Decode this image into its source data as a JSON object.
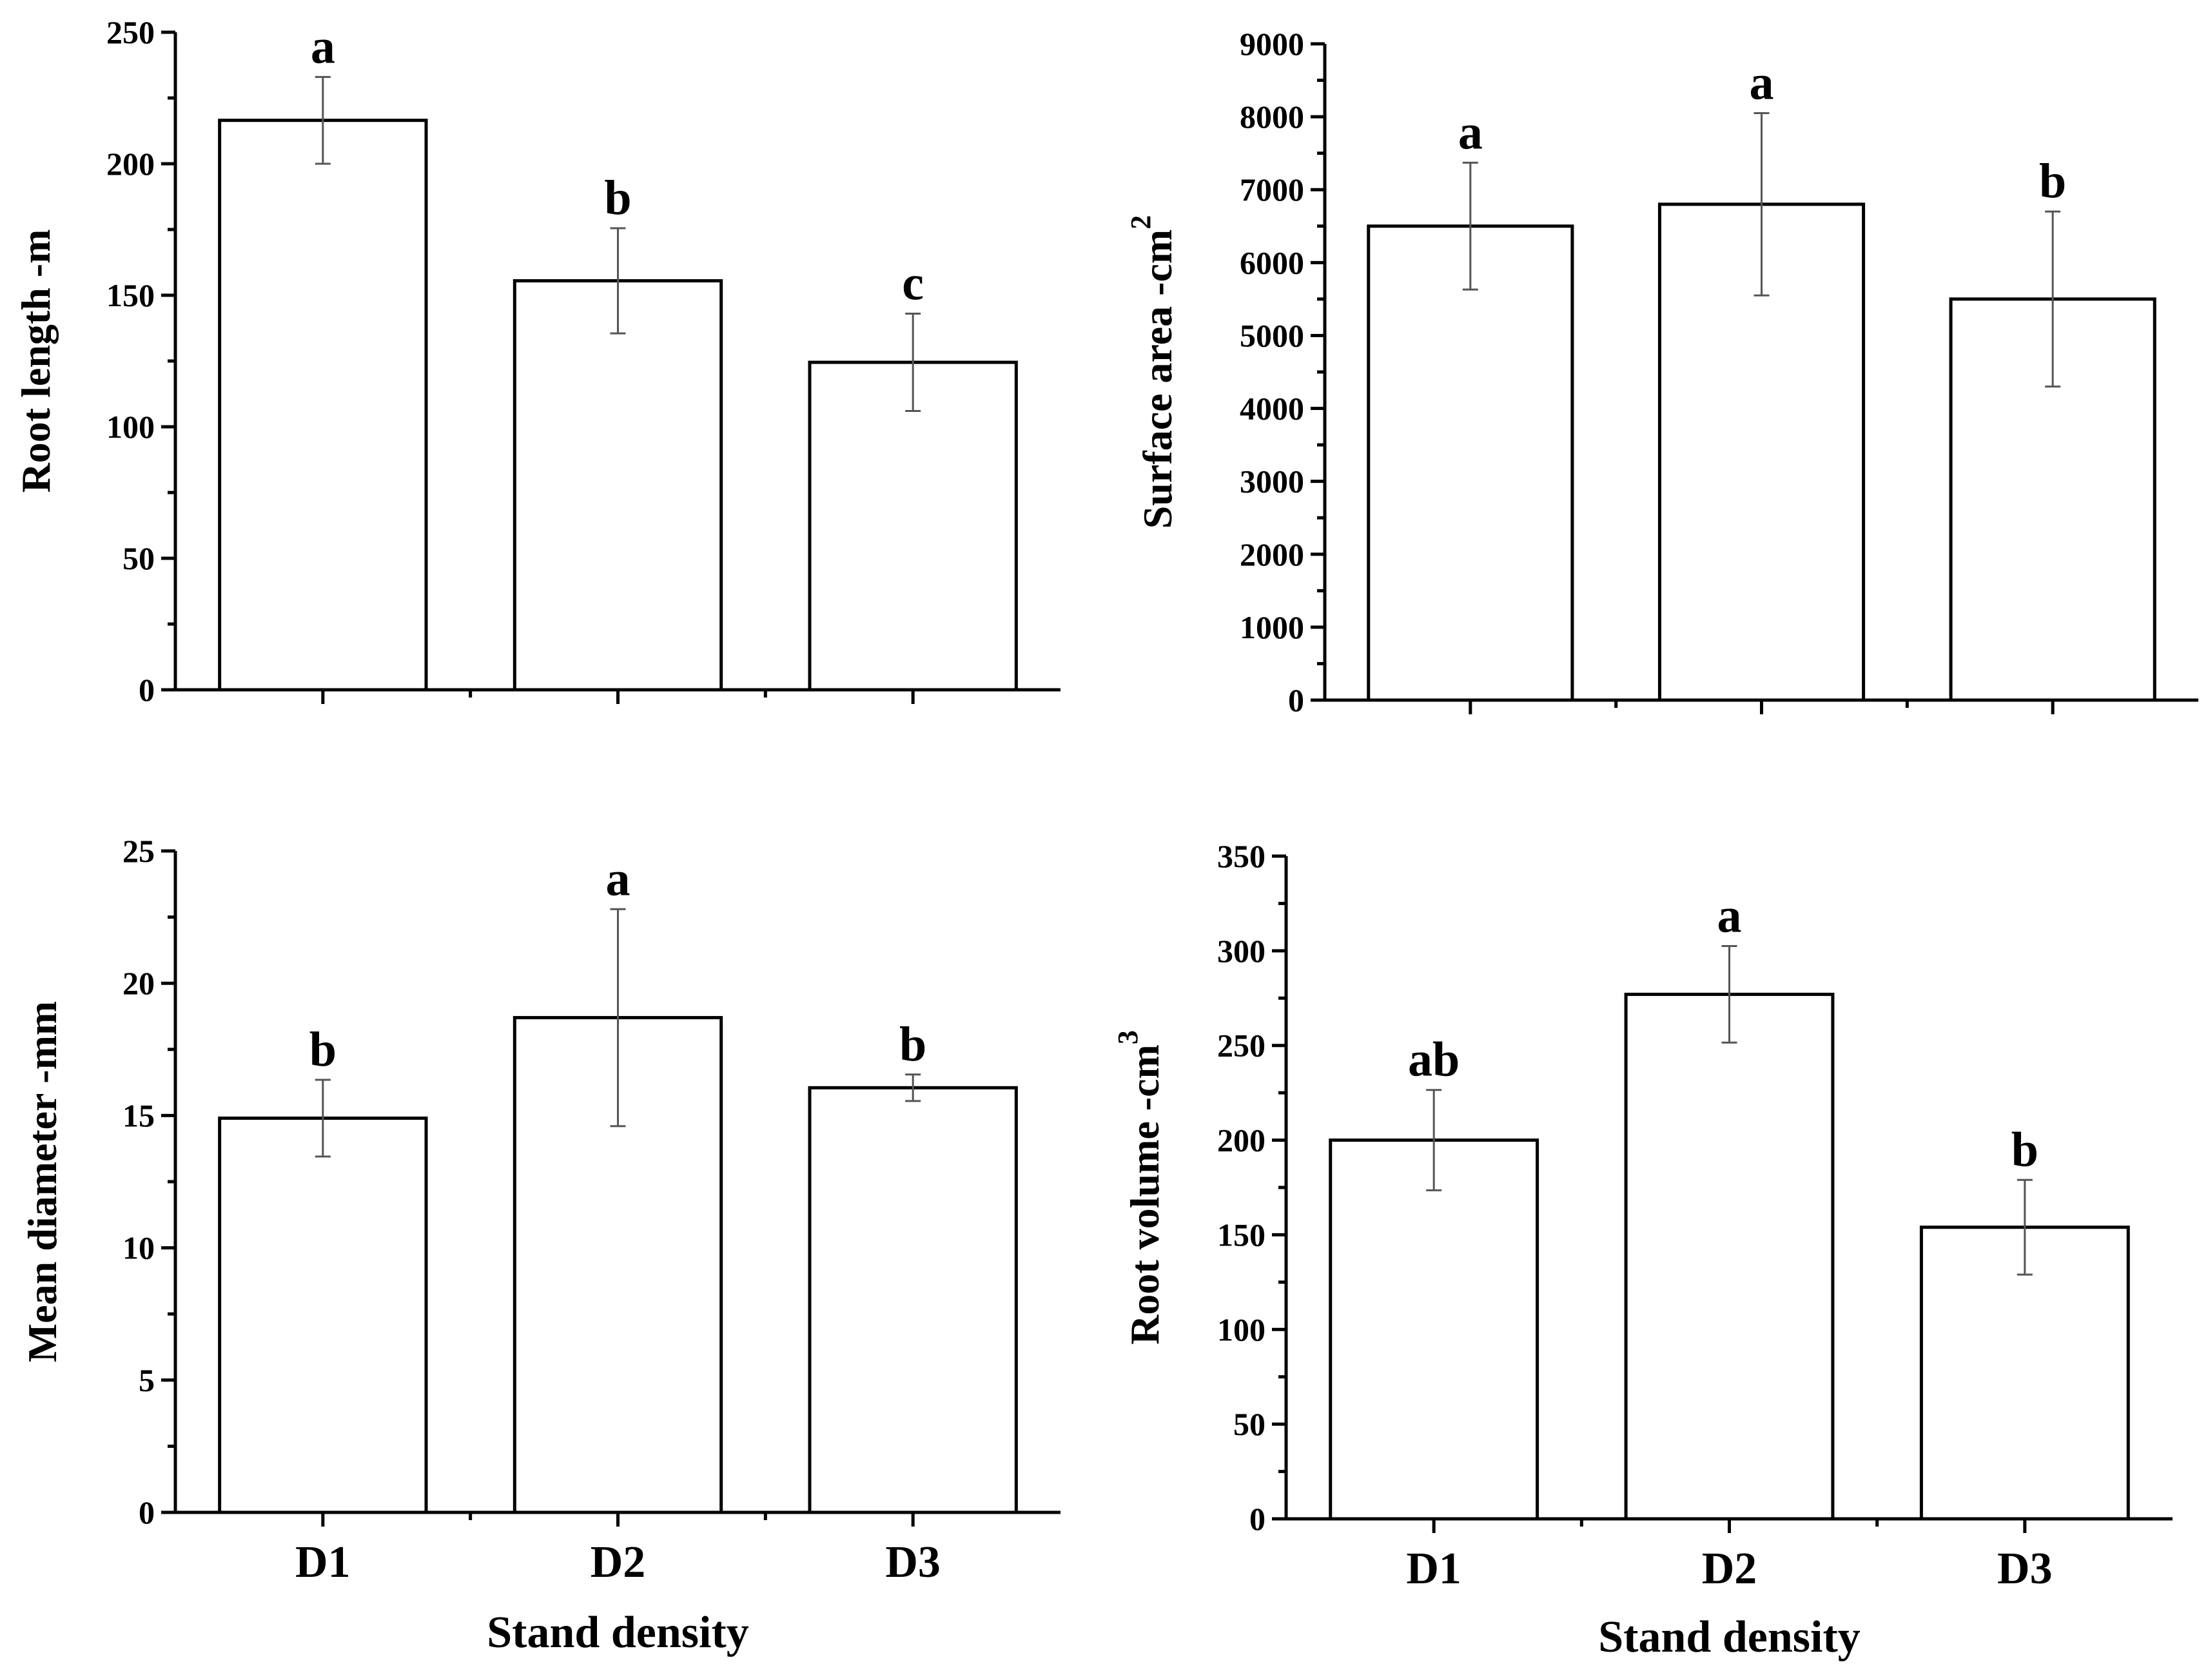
{
  "chart_data": [
    {
      "type": "bar",
      "panel": "top-left",
      "categories": [
        "D1",
        "D2",
        "D3"
      ],
      "values": [
        216.5,
        155.5,
        124.5
      ],
      "errors": [
        16.5,
        20,
        18.5
      ],
      "significance": [
        "a",
        "b",
        "c"
      ],
      "ylabel": "Root length -m",
      "ylabel_sup": "",
      "ylim": [
        0,
        250
      ],
      "yticks": [
        0,
        50,
        100,
        150,
        200,
        250
      ],
      "ytick_labels": [
        "0",
        "50",
        "100",
        "150",
        "200",
        "250"
      ],
      "show_x_tick_labels": false,
      "xlabel": ""
    },
    {
      "type": "bar",
      "panel": "top-right",
      "categories": [
        "D1",
        "D2",
        "D3"
      ],
      "values": [
        6500,
        6800,
        5500
      ],
      "errors": [
        870,
        1250,
        1200
      ],
      "significance": [
        "a",
        "a",
        "b"
      ],
      "ylabel": "Surface area -cm",
      "ylabel_sup": "2",
      "ylim": [
        0,
        9000
      ],
      "yticks": [
        0,
        1000,
        2000,
        3000,
        4000,
        5000,
        6000,
        7000,
        8000,
        9000
      ],
      "ytick_labels": [
        "0",
        "1000",
        "2000",
        "3000",
        "4000",
        "5000",
        "6000",
        "7000",
        "8000",
        "9000"
      ],
      "show_x_tick_labels": false,
      "xlabel": ""
    },
    {
      "type": "bar",
      "panel": "bottom-left",
      "categories": [
        "D1",
        "D2",
        "D3"
      ],
      "values": [
        14.9,
        18.7,
        16.05
      ],
      "errors": [
        1.45,
        4.1,
        0.5
      ],
      "significance": [
        "b",
        "a",
        "b"
      ],
      "ylabel": "Mean diameter -mm",
      "ylabel_sup": "",
      "ylim": [
        0,
        25
      ],
      "yticks": [
        0,
        5,
        10,
        15,
        20,
        25
      ],
      "ytick_labels": [
        "0",
        "5",
        "10",
        "15",
        "20",
        "25"
      ],
      "show_x_tick_labels": true,
      "xlabel": "Stand density"
    },
    {
      "type": "bar",
      "panel": "bottom-right",
      "categories": [
        "D1",
        "D2",
        "D3"
      ],
      "values": [
        200,
        277,
        154
      ],
      "errors": [
        26.5,
        25.5,
        25
      ],
      "significance": [
        "ab",
        "a",
        "b"
      ],
      "ylabel": "Root volume -cm",
      "ylabel_sup": "3",
      "ylim": [
        0,
        350
      ],
      "yticks": [
        0,
        50,
        100,
        150,
        200,
        250,
        300,
        350
      ],
      "ytick_labels": [
        "0",
        "50",
        "100",
        "150",
        "200",
        "250",
        "300",
        "350"
      ],
      "show_x_tick_labels": true,
      "xlabel": "Stand density"
    }
  ]
}
